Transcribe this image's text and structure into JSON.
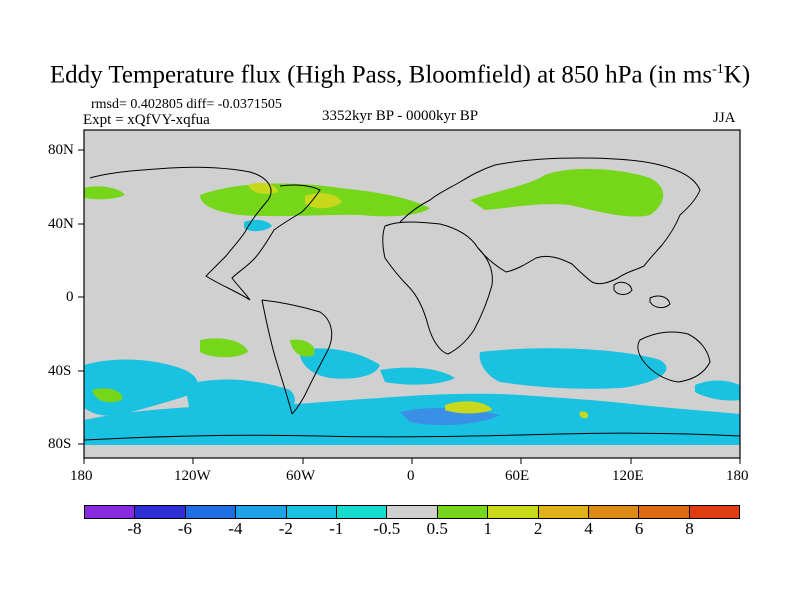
{
  "title": {
    "main": "Eddy Temperature flux (High Pass, Bloomfield) at 850 hPa (in ms",
    "sup": "-1",
    "tail": "K)"
  },
  "stats": "rmsd= 0.402805 diff= -0.0371505",
  "experiment": "Expt = xQfVY-xqfua",
  "period": "3352kyr BP - 0000kyr BP",
  "season": "JJA",
  "y_axis_labels": [
    "80N",
    "40N",
    "0",
    "40S",
    "80S"
  ],
  "x_axis_labels": [
    "180",
    "120W",
    "60W",
    "0",
    "60E",
    "120E",
    "180"
  ],
  "legend": {
    "labels": [
      "-8",
      "-6",
      "-4",
      "-2",
      "-1",
      "-0.5",
      "0.5",
      "1",
      "2",
      "4",
      "6",
      "8"
    ],
    "colors": [
      "#8a2be2",
      "#2f2fd8",
      "#1e6fe6",
      "#1fa3e8",
      "#18c2e0",
      "#16dcd0",
      "#d0d0d0",
      "#76d61a",
      "#c8d81a",
      "#e0b21a",
      "#e08a16",
      "#e06a12",
      "#e03c10"
    ]
  },
  "map": {
    "ocean_color": "#d0d0d0",
    "land_outline_color": "#000000"
  }
}
